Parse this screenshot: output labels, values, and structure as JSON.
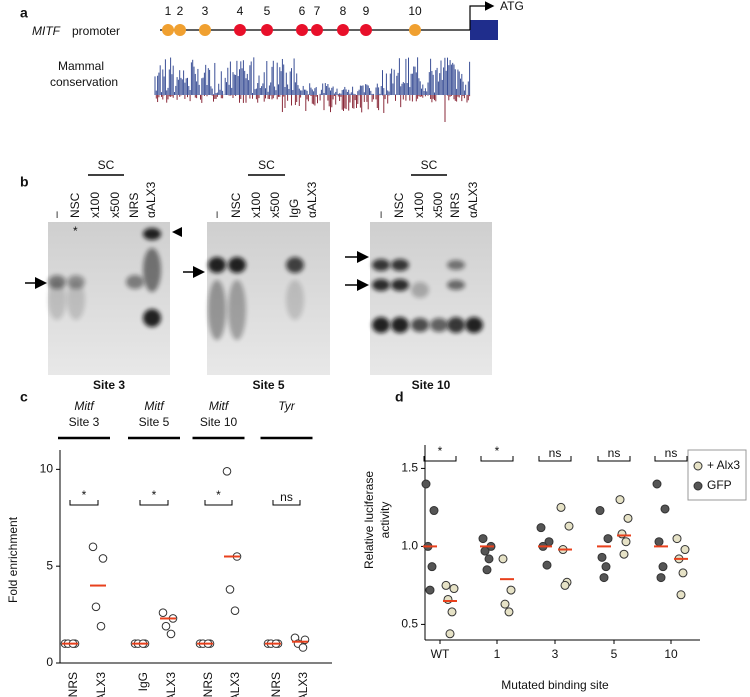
{
  "panel_a": {
    "label": "a",
    "promoter_gene": "MITF",
    "promoter_word": "promoter",
    "atg": "ATG",
    "sites": [
      {
        "label": "1",
        "color": "#f0a030"
      },
      {
        "label": "2",
        "color": "#f0a030"
      },
      {
        "label": "3",
        "color": "#f0a030"
      },
      {
        "label": "4",
        "color": "#e8102a"
      },
      {
        "label": "5",
        "color": "#e8102a"
      },
      {
        "label": "6",
        "color": "#e8102a"
      },
      {
        "label": "7",
        "color": "#e8102a"
      },
      {
        "label": "8",
        "color": "#e8102a"
      },
      {
        "label": "9",
        "color": "#e8102a"
      },
      {
        "label": "10",
        "color": "#f0a030"
      }
    ],
    "conservation_label": [
      "Mammal",
      "conservation"
    ]
  },
  "panel_b": {
    "label": "b",
    "gels": [
      {
        "lanes": [
          "–",
          "NSC",
          "x100",
          "x500",
          "NRS",
          "αALX3"
        ],
        "group": "SC",
        "title": "Site 3",
        "star": "*"
      },
      {
        "lanes": [
          "–",
          "NSC",
          "x100",
          "x500",
          "IgG",
          "αALX3"
        ],
        "group": "SC",
        "title": "Site 5"
      },
      {
        "lanes": [
          "–",
          "NSC",
          "x100",
          "x500",
          "NRS",
          "αALX3"
        ],
        "group": "SC",
        "title": "Site 10"
      }
    ]
  },
  "panel_c": {
    "label": "c",
    "chart_data": {
      "type": "strip",
      "y_label": "Fold enrichment",
      "ylim": [
        0,
        11
      ],
      "yticks": [
        0,
        5,
        10
      ],
      "mean_color": "#e8401c",
      "groups": [
        {
          "title": [
            "Mitf",
            "Site 3"
          ],
          "categories": [
            "NRS",
            "Anti-ALX3"
          ],
          "values": [
            [
              1,
              1,
              1,
              1
            ],
            [
              6.0,
              5.4,
              2.9,
              1.9
            ]
          ],
          "means": [
            1,
            4.0
          ],
          "significance": "*"
        },
        {
          "title": [
            "Mitf",
            "Site 5"
          ],
          "categories": [
            "IgG",
            "Anti-ALX3"
          ],
          "values": [
            [
              1,
              1,
              1,
              1
            ],
            [
              2.6,
              2.3,
              1.9,
              1.5
            ]
          ],
          "means": [
            1,
            2.3
          ],
          "significance": "*"
        },
        {
          "title": [
            "Mitf",
            "Site 10"
          ],
          "categories": [
            "NRS",
            "Anti-ALX3"
          ],
          "values": [
            [
              1,
              1,
              1,
              1
            ],
            [
              9.9,
              5.5,
              3.8,
              2.7
            ]
          ],
          "means": [
            1,
            5.5
          ],
          "significance": "*"
        },
        {
          "title": [
            "Tyr"
          ],
          "categories": [
            "NRS",
            "Anti-ALX3"
          ],
          "values": [
            [
              1,
              1,
              1,
              1
            ],
            [
              1.3,
              1.2,
              1.0,
              0.8
            ]
          ],
          "means": [
            1,
            1.1
          ],
          "significance": "ns"
        }
      ]
    }
  },
  "panel_d": {
    "label": "d",
    "chart_data": {
      "type": "strip",
      "y_label": [
        "Relative luciferase",
        "activity"
      ],
      "x_label": "Mutated binding site",
      "ylim": [
        0.4,
        1.65
      ],
      "yticks": [
        {
          "value": 0.5,
          "label": "0.5"
        },
        {
          "value": 1.0,
          "label": "1.0"
        },
        {
          "value": 1.5,
          "label": "1.5"
        }
      ],
      "mean_color": "#e8401c",
      "categories": [
        "WT",
        "1",
        "3",
        "5",
        "10"
      ],
      "significance": [
        "*",
        "*",
        "ns",
        "ns",
        "ns"
      ],
      "series": [
        {
          "name": "GFP",
          "color": "#555555",
          "values": [
            [
              1.4,
              1.23,
              1.0,
              0.87,
              0.72
            ],
            [
              1.05,
              1.0,
              0.97,
              0.92,
              0.85
            ],
            [
              1.12,
              1.03,
              1.0,
              0.88
            ],
            [
              1.23,
              1.05,
              0.93,
              0.87,
              0.8
            ],
            [
              1.4,
              1.24,
              1.03,
              0.87,
              0.8
            ]
          ],
          "means": [
            1.0,
            1.0,
            1.0,
            1.0,
            1.0
          ]
        },
        {
          "name": "+ Alx3",
          "color": "#e6e2c6",
          "values": [
            [
              0.75,
              0.73,
              0.66,
              0.58,
              0.44
            ],
            [
              0.92,
              0.72,
              0.63,
              0.58
            ],
            [
              1.25,
              1.13,
              0.98,
              0.77,
              0.75
            ],
            [
              1.3,
              1.18,
              1.08,
              1.03,
              0.95
            ],
            [
              1.05,
              0.98,
              0.92,
              0.83,
              0.69
            ]
          ],
          "means": [
            0.65,
            0.79,
            0.98,
            1.07,
            0.92
          ]
        }
      ]
    }
  }
}
